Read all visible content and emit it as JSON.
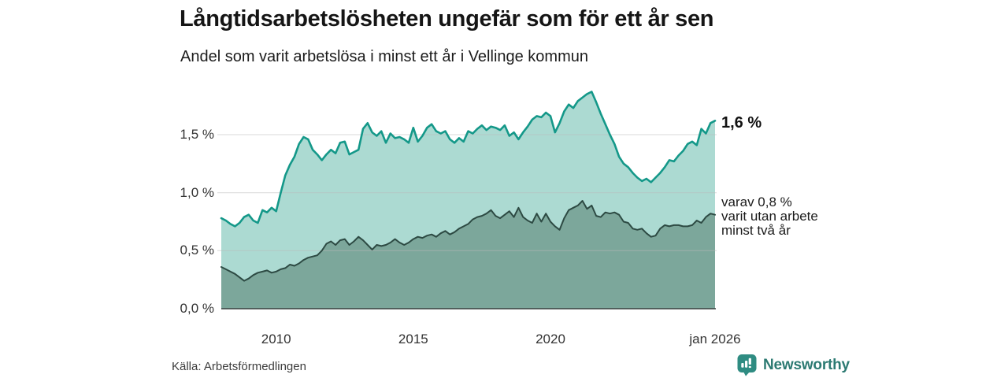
{
  "chart_data": {
    "type": "area",
    "title": "Långtidsarbetslösheten ungefär som för ett år sen",
    "subtitle": "Andel som varit arbetslösa i minst ett år i Vellinge kommun",
    "x_start": 2008,
    "x_end": 2026,
    "points_per_year": 6,
    "x_axis_note": "109 points, Jan 2008 - Jan 2026, one value every two months, percent of population",
    "ylim": [
      0,
      2.0
    ],
    "grid": true,
    "y_unit": "%",
    "series": [
      {
        "name": "Andel arbetslösa minst ett år",
        "line_color": "#149889",
        "fill_color": "#acdad2",
        "latest_label": "1,6 %",
        "latest_value": 1.6,
        "values": [
          0.78,
          0.76,
          0.73,
          0.71,
          0.74,
          0.79,
          0.81,
          0.76,
          0.74,
          0.85,
          0.83,
          0.87,
          0.84,
          1.0,
          1.15,
          1.24,
          1.31,
          1.42,
          1.48,
          1.46,
          1.37,
          1.33,
          1.28,
          1.33,
          1.37,
          1.34,
          1.43,
          1.44,
          1.33,
          1.35,
          1.37,
          1.55,
          1.6,
          1.52,
          1.49,
          1.53,
          1.43,
          1.51,
          1.47,
          1.48,
          1.46,
          1.43,
          1.56,
          1.44,
          1.49,
          1.56,
          1.59,
          1.53,
          1.51,
          1.53,
          1.46,
          1.43,
          1.47,
          1.44,
          1.53,
          1.51,
          1.55,
          1.58,
          1.54,
          1.57,
          1.56,
          1.54,
          1.58,
          1.49,
          1.52,
          1.46,
          1.52,
          1.57,
          1.63,
          1.66,
          1.65,
          1.69,
          1.66,
          1.52,
          1.6,
          1.7,
          1.76,
          1.73,
          1.79,
          1.82,
          1.85,
          1.87,
          1.78,
          1.68,
          1.59,
          1.5,
          1.42,
          1.31,
          1.25,
          1.22,
          1.17,
          1.13,
          1.1,
          1.12,
          1.09,
          1.13,
          1.17,
          1.22,
          1.28,
          1.27,
          1.32,
          1.36,
          1.42,
          1.44,
          1.41,
          1.55,
          1.51,
          1.6,
          1.62
        ]
      },
      {
        "name": "Andel utan arbete minst två år",
        "line_color": "#2d4a43",
        "fill_color": "#7ca79b",
        "latest_label": "varav 0,8 %\nvarit utan arbete\nminst två år",
        "latest_value": 0.8,
        "values": [
          0.36,
          0.34,
          0.32,
          0.3,
          0.27,
          0.24,
          0.26,
          0.29,
          0.31,
          0.32,
          0.33,
          0.31,
          0.32,
          0.34,
          0.35,
          0.38,
          0.37,
          0.39,
          0.42,
          0.44,
          0.45,
          0.46,
          0.5,
          0.56,
          0.58,
          0.55,
          0.59,
          0.6,
          0.55,
          0.58,
          0.62,
          0.59,
          0.55,
          0.51,
          0.55,
          0.54,
          0.55,
          0.57,
          0.6,
          0.57,
          0.55,
          0.57,
          0.6,
          0.62,
          0.61,
          0.63,
          0.64,
          0.62,
          0.65,
          0.67,
          0.64,
          0.66,
          0.69,
          0.71,
          0.73,
          0.77,
          0.79,
          0.8,
          0.82,
          0.85,
          0.8,
          0.78,
          0.81,
          0.84,
          0.79,
          0.87,
          0.79,
          0.76,
          0.74,
          0.82,
          0.75,
          0.82,
          0.75,
          0.71,
          0.68,
          0.78,
          0.85,
          0.87,
          0.89,
          0.93,
          0.86,
          0.89,
          0.8,
          0.79,
          0.83,
          0.82,
          0.83,
          0.81,
          0.75,
          0.74,
          0.69,
          0.68,
          0.69,
          0.65,
          0.62,
          0.63,
          0.69,
          0.72,
          0.71,
          0.72,
          0.72,
          0.71,
          0.71,
          0.72,
          0.76,
          0.74,
          0.79,
          0.82,
          0.81
        ]
      }
    ],
    "y_ticks": [
      {
        "label": "0,0 %",
        "value": 0
      },
      {
        "label": "0,5 %",
        "value": 0.5
      },
      {
        "label": "1,0 %",
        "value": 1
      },
      {
        "label": "1,5 %",
        "value": 1.5
      }
    ],
    "x_ticks": [
      {
        "label": "2010",
        "year": 2010
      },
      {
        "label": "2015",
        "year": 2015
      },
      {
        "label": "2020",
        "year": 2020
      },
      {
        "label": "jan 2026",
        "year": 2026
      }
    ],
    "grid_color": "#dcdcdc",
    "axis_line_color": "#38413f"
  },
  "footer": {
    "source": "Källa: Arbetsförmedlingen",
    "brand_name": "Newsworthy",
    "brand_color": "#2c7a72",
    "brand_icon_color": "#2f8c82"
  }
}
